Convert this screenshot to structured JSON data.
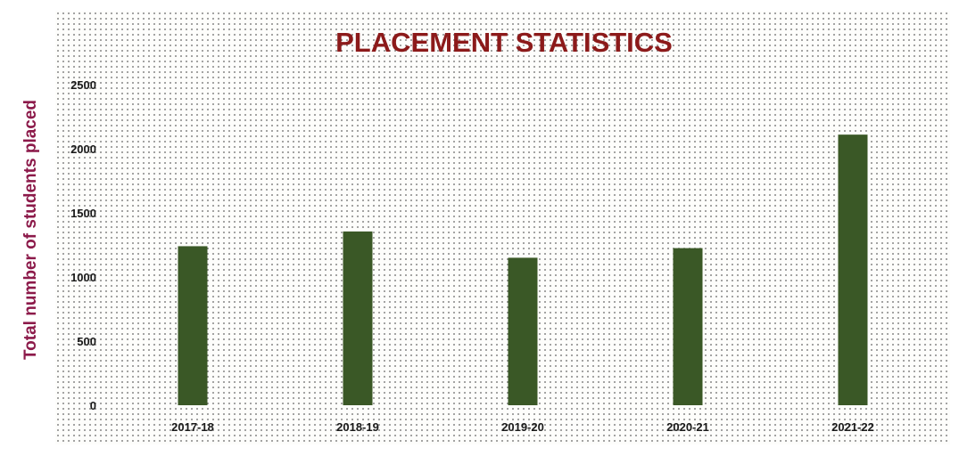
{
  "chart_data": {
    "type": "bar",
    "title": "PLACEMENT STATISTICS",
    "xlabel": "",
    "ylabel": "Total number of students placed",
    "categories": [
      "2017-18",
      "2018-19",
      "2019-20",
      "2020-21",
      "2021-22"
    ],
    "values": [
      1240,
      1355,
      1150,
      1225,
      2110
    ],
    "ylim": [
      0,
      2500
    ],
    "yticks": [
      "0",
      "500",
      "1000",
      "1500",
      "2000",
      "2500"
    ],
    "grid": false,
    "legend": "none"
  },
  "colors": {
    "bar": "#3a5826",
    "title": "#8c1a1a",
    "ylabel": "#8c1a4a"
  }
}
